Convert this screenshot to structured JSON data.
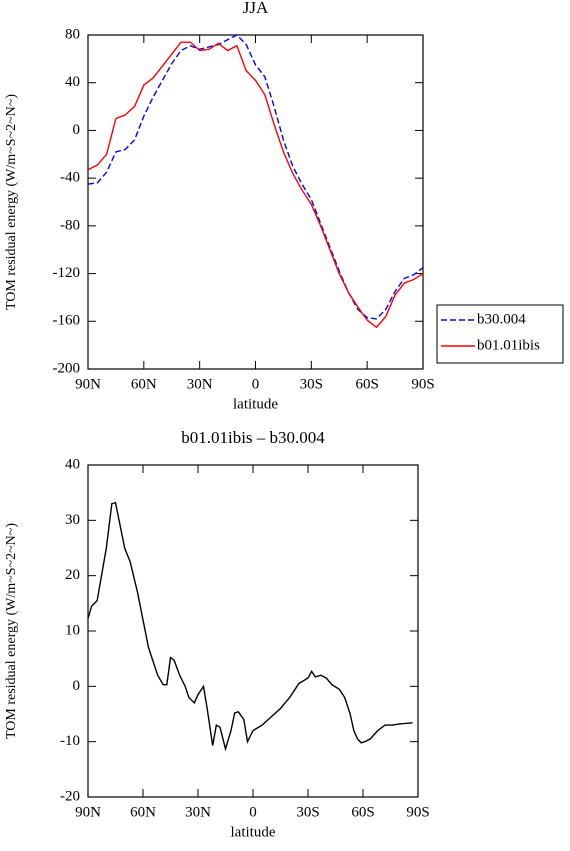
{
  "chart_data": [
    {
      "type": "line",
      "title": "JJA",
      "xlabel": "latitude",
      "ylabel": "TOM residual energy (W/m~S~2~N~)",
      "x": [
        90,
        85,
        80,
        75,
        70,
        65,
        60,
        55,
        50,
        45,
        40,
        35,
        30,
        25,
        20,
        15,
        10,
        5,
        0,
        -5,
        -10,
        -15,
        -20,
        -25,
        -30,
        -35,
        -40,
        -45,
        -50,
        -55,
        -60,
        -65,
        -70,
        -75,
        -80,
        -85,
        -90
      ],
      "series": [
        {
          "name": "b30.004",
          "color": "#0000ff",
          "dash": "dashed",
          "values": [
            -45,
            -44,
            -35,
            -18,
            -16,
            -8,
            12,
            28,
            42,
            56,
            67,
            71,
            68,
            70,
            72,
            76,
            80,
            72,
            55,
            45,
            20,
            -8,
            -30,
            -45,
            -58,
            -78,
            -98,
            -118,
            -136,
            -150,
            -157,
            -158,
            -150,
            -135,
            -124,
            -121,
            -115
          ]
        },
        {
          "name": "b01.01ibis",
          "color": "#ff0000",
          "dash": "solid",
          "values": [
            -33,
            -29,
            -20,
            10,
            13,
            20,
            38,
            44,
            54,
            64,
            74,
            74,
            67,
            68,
            73,
            67,
            71,
            50,
            42,
            30,
            5,
            -18,
            -36,
            -50,
            -62,
            -80,
            -100,
            -120,
            -136,
            -148,
            -159,
            -165,
            -156,
            -138,
            -128,
            -125,
            -120
          ]
        }
      ],
      "xlim": [
        90,
        -90
      ],
      "xticks": [
        {
          "value": 90,
          "label": "90N"
        },
        {
          "value": 60,
          "label": "60N"
        },
        {
          "value": 30,
          "label": "30N"
        },
        0,
        {
          "value": -30,
          "label": "30S"
        },
        {
          "value": -60,
          "label": "60S"
        },
        {
          "value": -90,
          "label": "90S"
        }
      ],
      "ylim": [
        -200,
        80
      ],
      "yticks": [
        80,
        40,
        0,
        -40,
        -80,
        -120,
        -160,
        -200
      ],
      "legend": "right"
    },
    {
      "type": "line",
      "title": "b01.01ibis – b30.004",
      "xlabel": "latitude",
      "ylabel": "TOM residual energy (W/m~S~2~N~)",
      "x": [
        90,
        88,
        85,
        80,
        77,
        75,
        70,
        67,
        63,
        60,
        57,
        52,
        49,
        47,
        45,
        43,
        40,
        37,
        35,
        32,
        30,
        27,
        25,
        22,
        20,
        18,
        15,
        12,
        10,
        8,
        5,
        3,
        0,
        -5,
        -10,
        -15,
        -20,
        -25,
        -30,
        -32,
        -34,
        -37,
        -40,
        -43,
        -47,
        -50,
        -53,
        -55,
        -57,
        -59,
        -61,
        -64,
        -68,
        -72,
        -76,
        -80,
        -87
      ],
      "series": [
        {
          "color": "#000000",
          "dash": "solid",
          "values": [
            12.3,
            14.5,
            15.5,
            25,
            33,
            33.2,
            25,
            22.5,
            17,
            12,
            7,
            2,
            0.3,
            0.3,
            5.2,
            4.7,
            2,
            0,
            -2,
            -3,
            -1.5,
            0,
            -4,
            -10.7,
            -7,
            -7.4,
            -11.3,
            -8,
            -4.8,
            -4.6,
            -6,
            -10,
            -8,
            -7,
            -5.5,
            -4,
            -2,
            0.5,
            1.5,
            2.7,
            1.7,
            2,
            1.5,
            0.3,
            -0.5,
            -2,
            -5,
            -8,
            -9.5,
            -10.2,
            -10,
            -9.5,
            -8,
            -7,
            -7,
            -6.8,
            -6.6
          ]
        }
      ],
      "xlim": [
        90,
        -90
      ],
      "xticks": [
        {
          "value": 90,
          "label": "90N"
        },
        {
          "value": 60,
          "label": "60N"
        },
        {
          "value": 30,
          "label": "30N"
        },
        0,
        {
          "value": -30,
          "label": "30S"
        },
        {
          "value": -60,
          "label": "60S"
        },
        {
          "value": -90,
          "label": "90S"
        }
      ],
      "ylim": [
        -20,
        40
      ],
      "yticks": [
        40,
        30,
        20,
        10,
        0,
        -10,
        -20
      ]
    }
  ]
}
